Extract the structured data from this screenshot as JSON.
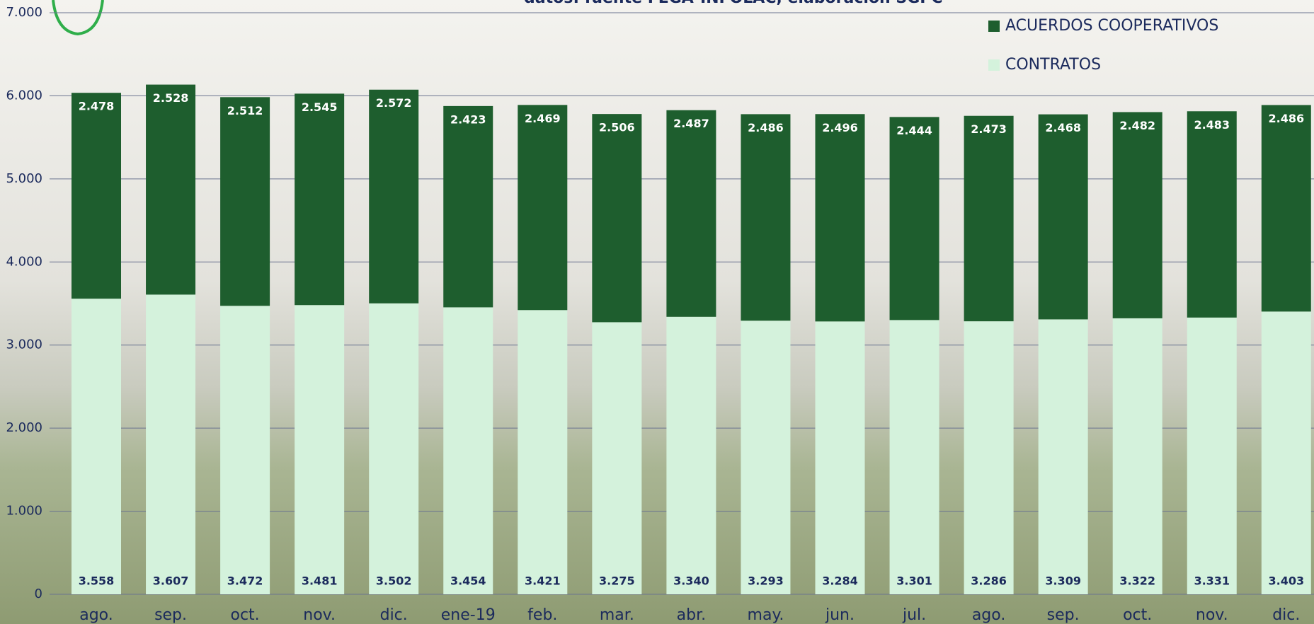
{
  "chart_data": {
    "type": "stacked_bar",
    "subtitle": "datos: fuente FEGA-INFOLAC, elaboración SGPC",
    "categories": [
      "ago.",
      "sep.",
      "oct.",
      "nov.",
      "dic.",
      "ene-19",
      "feb.",
      "mar.",
      "abr.",
      "may.",
      "jun.",
      "jul.",
      "ago.",
      "sep.",
      "oct.",
      "nov.",
      "dic."
    ],
    "series": [
      {
        "name": "CONTRATOS",
        "color": "#d4f2dc",
        "label_color": "#1b2a5c",
        "values": [
          3558,
          3607,
          3472,
          3481,
          3502,
          3454,
          3421,
          3275,
          3340,
          3293,
          3284,
          3301,
          3286,
          3309,
          3322,
          3331,
          3403
        ],
        "value_labels": [
          "3.558",
          "3.607",
          "3.472",
          "3.481",
          "3.502",
          "3.454",
          "3.421",
          "3.275",
          "3.340",
          "3.293",
          "3.284",
          "3.301",
          "3.286",
          "3.309",
          "3.322",
          "3.331",
          "3.403"
        ]
      },
      {
        "name": "ACUERDOS COOPERATIVOS",
        "color": "#1e5e2e",
        "label_color": "#ffffff",
        "values": [
          2478,
          2528,
          2512,
          2545,
          2572,
          2423,
          2469,
          2506,
          2487,
          2486,
          2496,
          2444,
          2473,
          2468,
          2482,
          2483,
          2486
        ],
        "value_labels": [
          "2.478",
          "2.528",
          "2.512",
          "2.545",
          "2.572",
          "2.423",
          "2.469",
          "2.506",
          "2.487",
          "2.486",
          "2.496",
          "2.444",
          "2.473",
          "2.468",
          "2.482",
          "2.483",
          "2.486"
        ]
      }
    ],
    "ylim": [
      0,
      7000
    ],
    "yticks": [
      0,
      {
        "value": 1000,
        "label": "1.000"
      },
      {
        "value": 2000,
        "label": "2.000"
      },
      {
        "value": 3000,
        "label": "3.000"
      },
      {
        "value": 4000,
        "label": "4.000"
      },
      {
        "value": 5000,
        "label": "5.000"
      },
      {
        "value": 6000,
        "label": "6.000"
      },
      {
        "value": 7000,
        "label": "7.000"
      }
    ],
    "grid": true,
    "legend": "top-right"
  }
}
